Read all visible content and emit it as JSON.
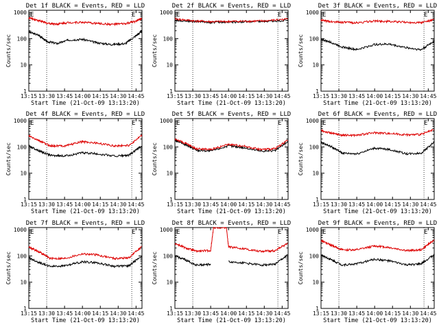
{
  "chart_data": [
    {
      "type": "line",
      "title": "Det 1f BLACK = Events, RED = LLD",
      "xlabel": "Start Time (21-Oct-09 13:13:20)",
      "ylabel": "Counts/sec",
      "yscale": "log",
      "ylim": [
        1,
        1200
      ],
      "xlim": [
        13.25,
        14.833
      ],
      "x_ticks": [
        "13:15",
        "13:30",
        "13:45",
        "14:00",
        "14:15",
        "14:30",
        "14:45"
      ],
      "y_ticks": [
        "1",
        "10",
        "100",
        "1000"
      ],
      "markers": [
        {
          "label": "E",
          "x": 13.26
        },
        {
          "label": "E",
          "x": 14.68
        }
      ],
      "dotted_lines_x": [
        13.5,
        14.69
      ],
      "series": [
        {
          "name": "Events",
          "color": "#000000",
          "x": [
            13.25,
            13.4,
            13.5,
            13.65,
            13.8,
            14.0,
            14.2,
            14.4,
            14.6,
            14.75,
            14.83
          ],
          "values": [
            180,
            130,
            78,
            65,
            88,
            95,
            70,
            60,
            65,
            130,
            190
          ]
        },
        {
          "name": "LLD",
          "color": "#dd0000",
          "x": [
            13.25,
            13.4,
            13.5,
            13.65,
            13.8,
            14.0,
            14.2,
            14.4,
            14.6,
            14.75,
            14.83
          ],
          "values": [
            620,
            480,
            390,
            360,
            410,
            420,
            380,
            350,
            370,
            460,
            600
          ]
        }
      ]
    },
    {
      "type": "line",
      "title": "Det 2f BLACK = Events, RED = LLD",
      "xlabel": "Start Time (21-Oct-09 13:13:20)",
      "ylabel": "Counts/sec",
      "yscale": "log",
      "ylim": [
        1,
        1200
      ],
      "xlim": [
        13.25,
        14.833
      ],
      "x_ticks": [
        "13:15",
        "13:30",
        "13:45",
        "14:00",
        "14:15",
        "14:30",
        "14:45"
      ],
      "y_ticks": [
        "1",
        "10",
        "100",
        "1000"
      ],
      "markers": [
        {
          "label": "E",
          "x": 13.26
        },
        {
          "label": "E",
          "x": 14.68
        }
      ],
      "dotted_lines_x": [
        13.5,
        14.69
      ],
      "series": [
        {
          "name": "Events",
          "color": "#000000",
          "x": [
            13.25,
            13.5,
            13.75,
            14.0,
            14.25,
            14.5,
            14.83
          ],
          "values": [
            500,
            460,
            420,
            430,
            440,
            450,
            500
          ]
        },
        {
          "name": "LLD",
          "color": "#dd0000",
          "x": [
            13.25,
            13.5,
            13.75,
            14.0,
            14.25,
            14.5,
            14.83
          ],
          "values": [
            560,
            480,
            440,
            450,
            460,
            470,
            560
          ]
        }
      ]
    },
    {
      "type": "line",
      "title": "Det 3f BLACK = Events, RED = LLD",
      "xlabel": "Start Time (21-Oct-09 13:13:20)",
      "ylabel": "Counts/sec",
      "yscale": "log",
      "ylim": [
        1,
        1200
      ],
      "xlim": [
        13.25,
        14.833
      ],
      "x_ticks": [
        "13:15",
        "13:30",
        "13:45",
        "14:00",
        "14:15",
        "14:30",
        "14:45"
      ],
      "y_ticks": [
        "1",
        "10",
        "100",
        "1000"
      ],
      "markers": [
        {
          "label": "E",
          "x": 13.26
        },
        {
          "label": "E",
          "x": 14.68
        }
      ],
      "dotted_lines_x": [
        13.5,
        14.69
      ],
      "series": [
        {
          "name": "Events",
          "color": "#000000",
          "x": [
            13.25,
            13.4,
            13.55,
            13.75,
            14.0,
            14.2,
            14.45,
            14.65,
            14.83
          ],
          "values": [
            95,
            70,
            48,
            38,
            60,
            62,
            45,
            38,
            80
          ]
        },
        {
          "name": "LLD",
          "color": "#dd0000",
          "x": [
            13.25,
            13.4,
            13.55,
            13.75,
            14.0,
            14.2,
            14.45,
            14.65,
            14.83
          ],
          "values": [
            500,
            440,
            420,
            400,
            470,
            450,
            420,
            410,
            520
          ]
        }
      ]
    },
    {
      "type": "line",
      "title": "Det 4f BLACK = Events, RED = LLD",
      "xlabel": "Start Time (21-Oct-09 13:13:20)",
      "ylabel": "Counts/sec",
      "yscale": "log",
      "ylim": [
        1,
        1200
      ],
      "xlim": [
        13.25,
        14.833
      ],
      "x_ticks": [
        "13:15",
        "13:30",
        "13:45",
        "14:00",
        "14:15",
        "14:30",
        "14:45"
      ],
      "y_ticks": [
        "1",
        "10",
        "100",
        "1000"
      ],
      "markers": [
        {
          "label": "E",
          "x": 13.26
        },
        {
          "label": "E",
          "x": 14.68
        }
      ],
      "dotted_lines_x": [
        13.5,
        14.69
      ],
      "series": [
        {
          "name": "Events",
          "color": "#000000",
          "x": [
            13.25,
            13.4,
            13.55,
            13.75,
            14.0,
            14.2,
            14.45,
            14.65,
            14.83
          ],
          "values": [
            110,
            70,
            48,
            45,
            60,
            55,
            45,
            48,
            110
          ]
        },
        {
          "name": "LLD",
          "color": "#dd0000",
          "x": [
            13.25,
            13.4,
            13.55,
            13.75,
            14.0,
            14.2,
            14.45,
            14.65,
            14.83
          ],
          "values": [
            260,
            170,
            110,
            110,
            160,
            140,
            110,
            115,
            270
          ]
        }
      ]
    },
    {
      "type": "line",
      "title": "Det 5f BLACK = Events, RED = LLD",
      "xlabel": "Start Time (21-Oct-09 13:13:20)",
      "ylabel": "Counts/sec",
      "yscale": "log",
      "ylim": [
        1,
        1200
      ],
      "xlim": [
        13.25,
        14.833
      ],
      "x_ticks": [
        "13:15",
        "13:30",
        "13:45",
        "14:00",
        "14:15",
        "14:30",
        "14:45"
      ],
      "y_ticks": [
        "1",
        "10",
        "100",
        "1000"
      ],
      "markers": [
        {
          "label": "E",
          "x": 13.26
        },
        {
          "label": "E",
          "x": 14.68
        }
      ],
      "dotted_lines_x": [
        13.5,
        14.69
      ],
      "series": [
        {
          "name": "Events",
          "color": "#000000",
          "x": [
            13.25,
            13.4,
            13.55,
            13.75,
            14.0,
            14.2,
            14.45,
            14.65,
            14.83
          ],
          "values": [
            180,
            120,
            75,
            70,
            110,
            95,
            70,
            72,
            160
          ]
        },
        {
          "name": "LLD",
          "color": "#dd0000",
          "x": [
            13.25,
            13.4,
            13.55,
            13.75,
            14.0,
            14.2,
            14.45,
            14.65,
            14.83
          ],
          "values": [
            200,
            135,
            85,
            80,
            125,
            110,
            80,
            85,
            185
          ]
        }
      ]
    },
    {
      "type": "line",
      "title": "Det 6f BLACK = Events, RED = LLD",
      "xlabel": "Start Time (21-Oct-09 13:13:20)",
      "ylabel": "Counts/sec",
      "yscale": "log",
      "ylim": [
        1,
        1200
      ],
      "xlim": [
        13.25,
        14.833
      ],
      "x_ticks": [
        "13:15",
        "13:30",
        "13:45",
        "14:00",
        "14:15",
        "14:30",
        "14:45"
      ],
      "y_ticks": [
        "1",
        "10",
        "100",
        "1000"
      ],
      "markers": [
        {
          "label": "E",
          "x": 13.26
        },
        {
          "label": "E",
          "x": 14.68
        }
      ],
      "dotted_lines_x": [
        13.5,
        14.69
      ],
      "series": [
        {
          "name": "Events",
          "color": "#000000",
          "x": [
            13.25,
            13.4,
            13.55,
            13.75,
            14.0,
            14.2,
            14.45,
            14.65,
            14.83
          ],
          "values": [
            150,
            100,
            58,
            55,
            90,
            80,
            55,
            58,
            150
          ]
        },
        {
          "name": "LLD",
          "color": "#dd0000",
          "x": [
            13.25,
            13.4,
            13.55,
            13.75,
            14.0,
            14.2,
            14.45,
            14.65,
            14.83
          ],
          "values": [
            420,
            330,
            280,
            280,
            350,
            330,
            290,
            300,
            450
          ]
        }
      ]
    },
    {
      "type": "line",
      "title": "Det 7f BLACK = Events, RED = LLD",
      "xlabel": "Start Time (21-Oct-09 13:13:20)",
      "ylabel": "Counts/sec",
      "yscale": "log",
      "ylim": [
        1,
        1200
      ],
      "xlim": [
        13.25,
        14.833
      ],
      "x_ticks": [
        "13:15",
        "13:30",
        "13:45",
        "14:00",
        "14:15",
        "14:30",
        "14:45"
      ],
      "y_ticks": [
        "1",
        "10",
        "100",
        "1000"
      ],
      "markers": [
        {
          "label": "E",
          "x": 13.26
        },
        {
          "label": "E",
          "x": 14.68
        }
      ],
      "dotted_lines_x": [
        13.5,
        14.69
      ],
      "series": [
        {
          "name": "Events",
          "color": "#000000",
          "x": [
            13.25,
            13.4,
            13.55,
            13.75,
            14.0,
            14.2,
            14.45,
            14.65,
            14.83
          ],
          "values": [
            85,
            55,
            40,
            42,
            60,
            55,
            40,
            42,
            100
          ]
        },
        {
          "name": "LLD",
          "color": "#dd0000",
          "x": [
            13.25,
            13.4,
            13.55,
            13.75,
            14.0,
            14.2,
            14.45,
            14.65,
            14.83
          ],
          "values": [
            220,
            140,
            80,
            80,
            120,
            110,
            80,
            85,
            230
          ]
        }
      ]
    },
    {
      "type": "line",
      "title": "Det 8f BLACK = Events, RED = LLD",
      "xlabel": "Start Time (21-Oct-09 13:13:20)",
      "ylabel": "Counts/sec",
      "yscale": "log",
      "ylim": [
        1,
        1200
      ],
      "xlim": [
        13.25,
        14.833
      ],
      "x_ticks": [
        "13:15",
        "13:30",
        "13:45",
        "14:00",
        "14:15",
        "14:30",
        "14:45"
      ],
      "y_ticks": [
        "1",
        "10",
        "100",
        "1000"
      ],
      "markers": [
        {
          "label": "E",
          "x": 13.26
        },
        {
          "label": "E",
          "x": 14.68
        }
      ],
      "dotted_lines_x": [
        13.5,
        14.69
      ],
      "series": [
        {
          "name": "Events",
          "color": "#000000",
          "x": [
            13.25,
            13.4,
            13.55,
            13.75,
            13.79,
            13.97,
            14.0,
            14.2,
            14.45,
            14.65,
            14.83
          ],
          "values": [
            100,
            70,
            45,
            48,
            null,
            null,
            60,
            55,
            45,
            48,
            110
          ]
        },
        {
          "name": "LLD",
          "color": "#dd0000",
          "x": [
            13.25,
            13.4,
            13.55,
            13.75,
            13.79,
            13.97,
            14.0,
            14.2,
            14.45,
            14.65,
            14.83
          ],
          "values": [
            300,
            200,
            150,
            160,
            1200,
            1200,
            220,
            190,
            150,
            160,
            300
          ]
        }
      ]
    },
    {
      "type": "line",
      "title": "Det 9f BLACK = Events, RED = LLD",
      "xlabel": "Start Time (21-Oct-09 13:13:20)",
      "ylabel": "Counts/sec",
      "yscale": "log",
      "ylim": [
        1,
        1200
      ],
      "xlim": [
        13.25,
        14.833
      ],
      "x_ticks": [
        "13:15",
        "13:30",
        "13:45",
        "14:00",
        "14:15",
        "14:30",
        "14:45"
      ],
      "y_ticks": [
        "1",
        "10",
        "100",
        "1000"
      ],
      "markers": [
        {
          "label": "E",
          "x": 13.26
        },
        {
          "label": "E",
          "x": 14.68
        }
      ],
      "dotted_lines_x": [
        13.5,
        14.69
      ],
      "series": [
        {
          "name": "Events",
          "color": "#000000",
          "x": [
            13.25,
            13.4,
            13.55,
            13.75,
            14.0,
            14.2,
            14.45,
            14.65,
            14.83
          ],
          "values": [
            110,
            70,
            45,
            50,
            75,
            65,
            45,
            50,
            110
          ]
        },
        {
          "name": "LLD",
          "color": "#dd0000",
          "x": [
            13.25,
            13.4,
            13.55,
            13.75,
            14.0,
            14.2,
            14.45,
            14.65,
            14.83
          ],
          "values": [
            380,
            250,
            170,
            170,
            240,
            210,
            160,
            170,
            400
          ]
        }
      ]
    }
  ]
}
